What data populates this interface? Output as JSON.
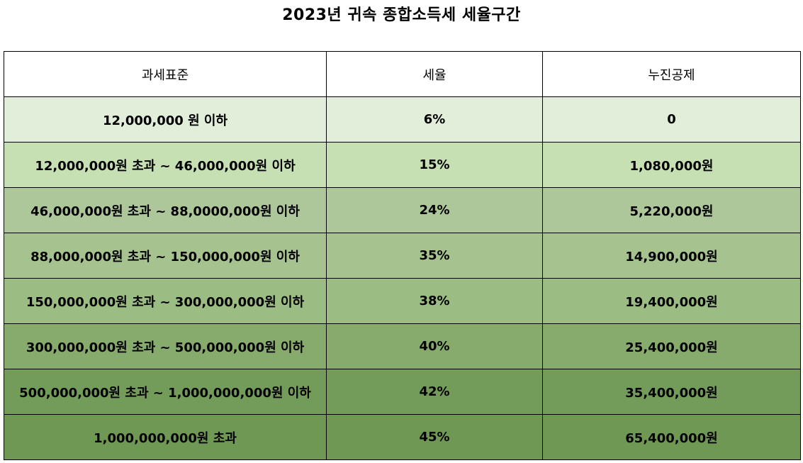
{
  "title": "2023년 귀속 종합소득세 세율구간",
  "headers": {
    "bracket": "과세표준",
    "rate": "세율",
    "deduction": "누진공제"
  },
  "rows": [
    {
      "bracket": "12,000,000 원 이하",
      "rate": "6%",
      "deduction": "0",
      "color": "#e2eeda"
    },
    {
      "bracket": "12,000,000원 초과 ~ 46,000,000원 이하",
      "rate": "15%",
      "deduction": "1,080,000원",
      "color": "#c6e0b3"
    },
    {
      "bracket": "46,000,000원 초과 ~ 88,0000,000원 이하",
      "rate": "24%",
      "deduction": "5,220,000원",
      "color": "#adc69a"
    },
    {
      "bracket": "88,000,000원 초과 ~ 150,000,000원 이하",
      "rate": "35%",
      "deduction": "14,900,000원",
      "color": "#a5c28f"
    },
    {
      "bracket": "150,000,000원 초과 ~ 300,000,000원 이하",
      "rate": "38%",
      "deduction": "19,400,000원",
      "color": "#9bbc83"
    },
    {
      "bracket": "300,000,000원 초과 ~ 500,000,000원 이하",
      "rate": "40%",
      "deduction": "25,400,000원",
      "color": "#86ab6d"
    },
    {
      "bracket": "500,000,000원 초과 ~ 1,000,000,000원 이하",
      "rate": "42%",
      "deduction": "35,400,000원",
      "color": "#739c5a"
    },
    {
      "bracket": "1,000,000,000원 초과",
      "rate": "45%",
      "deduction": "65,400,000원",
      "color": "#6f9855"
    }
  ]
}
